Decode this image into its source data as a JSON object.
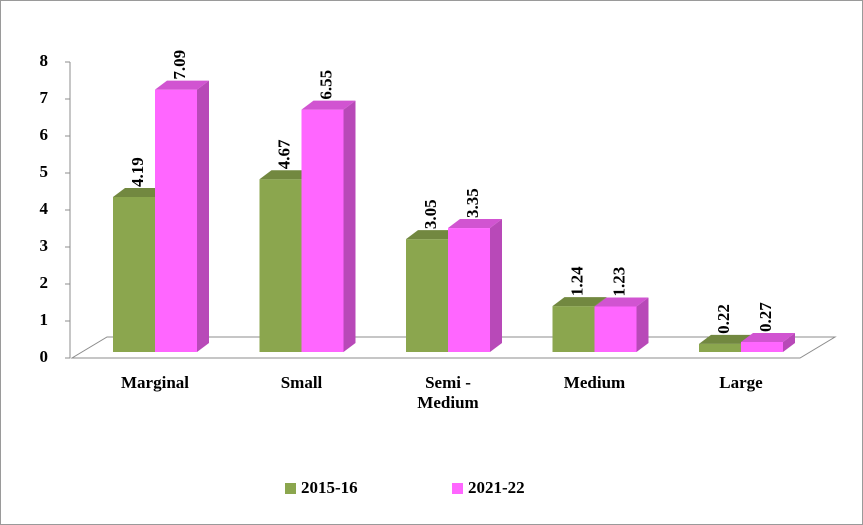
{
  "chart_data": {
    "type": "bar3d",
    "categories": [
      "Marginal",
      "Small",
      "Semi -\nMedium",
      "Medium",
      "Large"
    ],
    "series": [
      {
        "name": "2015-16",
        "color": "#8ba64e",
        "values": [
          4.19,
          4.67,
          3.05,
          1.24,
          0.22
        ]
      },
      {
        "name": "2021-22",
        "color": "#ff66ff",
        "values": [
          7.09,
          6.55,
          3.35,
          1.23,
          0.27
        ]
      }
    ],
    "ylim": [
      0,
      8
    ],
    "yticks": [
      0,
      1,
      2,
      3,
      4,
      5,
      6,
      7,
      8
    ],
    "legend": "bottom"
  }
}
